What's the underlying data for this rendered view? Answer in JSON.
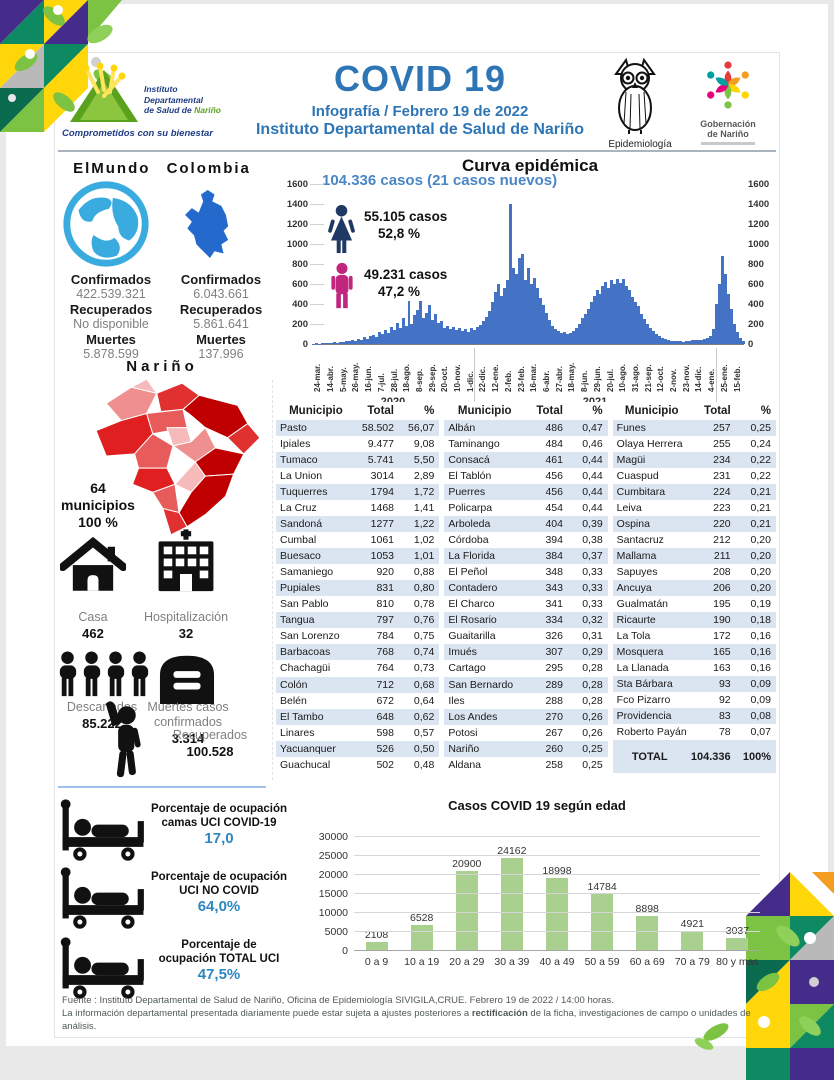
{
  "header": {
    "title": "COVID 19",
    "subtitle1": "Infografía / Febrero 19 de 2022",
    "subtitle2": "Instituto Departamental de Salud de Nariño",
    "logo": {
      "line1": "Instituto",
      "line2": "Departamental",
      "line3a": "de Salud de ",
      "line3b": "Nariño",
      "tagline": "Comprometidos con su bienestar"
    },
    "epi_label": "Epidemiología",
    "gob_line1": "Gobernación",
    "gob_line2": "de Nariño"
  },
  "world_stats": {
    "heading": "ElMundo Colombia",
    "labels": {
      "confirmed": "Confirmados",
      "recovered": "Recuperados",
      "deaths": "Muertes"
    },
    "world": {
      "confirmed": "422.539.321",
      "recovered": "No disponible",
      "deaths": "5.878.599"
    },
    "colombia": {
      "confirmed": "6.043.661",
      "recovered": "5.861.641",
      "deaths": "137.996"
    }
  },
  "narino": {
    "heading": "Nariño",
    "municipios_line1": "64",
    "municipios_line2": "municipios",
    "municipios_line3": "100 %",
    "casa_label": "Casa",
    "casa_value": "462",
    "hosp_label": "Hospitalización",
    "hosp_value": "32",
    "descartados_label": "Descartados",
    "descartados_value": "85.222",
    "muertes_label1": "Muertes casos",
    "muertes_label2": "confirmados",
    "muertes_value": "3.314",
    "recuperados_label": "Recuperados",
    "recuperados_value": "100.528"
  },
  "uci": {
    "rows": [
      {
        "l1": "Porcentaje de ocupación",
        "l2": "camas UCI COVID-19",
        "value": "17,0"
      },
      {
        "l1": "Porcentaje de ocupación",
        "l2": "UCI NO COVID",
        "value": "64,0%"
      },
      {
        "l1": "Porcentaje de",
        "l2": "ocupación TOTAL UCI",
        "value": "47,5%"
      }
    ]
  },
  "chart_data": [
    {
      "type": "bar",
      "title": "Curva epidémica",
      "annotation": "104.336 casos (21 casos nuevos)",
      "female": {
        "cases": "55.105 casos",
        "pct": "52,8 %"
      },
      "male": {
        "cases": "49.231 casos",
        "pct": "47,2 %"
      },
      "ylim": [
        0,
        1600
      ],
      "yticks": [
        0,
        200,
        400,
        600,
        800,
        1000,
        1200,
        1400,
        1600
      ],
      "x_labels": [
        "24-mar.",
        "14-abr.",
        "5-may.",
        "26-may.",
        "16-jun.",
        "7-jul.",
        "28-jul.",
        "18-ago.",
        "8-sep.",
        "29-sep.",
        "20-oct.",
        "10-nov.",
        "1-dic.",
        "22-dic.",
        "12-ene.",
        "2-feb.",
        "23-feb.",
        "16-mar.",
        "6-abr.",
        "27-abr.",
        "18-may.",
        "8-jun.",
        "29-jun.",
        "20-jul.",
        "10-ago.",
        "31-ago.",
        "21-sep.",
        "12-oct.",
        "2-nov.",
        "23-nov.",
        "14-dic.",
        "4-ene.",
        "25-ene.",
        "15-feb."
      ],
      "year_labels": [
        "2020",
        "2021"
      ],
      "bar_color": "#4472c4",
      "values": [
        4,
        6,
        5,
        9,
        8,
        12,
        10,
        16,
        14,
        22,
        18,
        30,
        26,
        40,
        34,
        52,
        44,
        66,
        55,
        80,
        95,
        70,
        120,
        100,
        145,
        110,
        170,
        140,
        210,
        160,
        260,
        180,
        430,
        200,
        290,
        340,
        430,
        260,
        310,
        390,
        240,
        300,
        210,
        230,
        160,
        185,
        150,
        170,
        140,
        165,
        130,
        150,
        125,
        160,
        140,
        175,
        190,
        230,
        270,
        330,
        420,
        520,
        600,
        480,
        560,
        640,
        1400,
        760,
        700,
        860,
        900,
        640,
        760,
        600,
        660,
        560,
        460,
        390,
        310,
        240,
        185,
        150,
        130,
        115,
        120,
        100,
        115,
        130,
        160,
        200,
        260,
        300,
        350,
        420,
        480,
        540,
        500,
        580,
        620,
        560,
        640,
        600,
        650,
        610,
        650,
        580,
        540,
        470,
        420,
        380,
        300,
        250,
        200,
        160,
        130,
        100,
        80,
        60,
        50,
        40,
        35,
        30,
        26,
        30,
        25,
        34,
        30,
        40,
        36,
        45,
        40,
        52,
        60,
        80,
        150,
        400,
        600,
        880,
        700,
        500,
        350,
        200,
        120,
        60,
        30
      ]
    },
    {
      "type": "bar",
      "title": "Casos COVID 19  según edad",
      "categories": [
        "0 a 9",
        "10 a 19",
        "20 a 29",
        "30 a 39",
        "40 a 49",
        "50 a 59",
        "60 a 69",
        "70 a 79",
        "80 y mas"
      ],
      "values": [
        2108,
        6528,
        20900,
        24162,
        18998,
        14784,
        8898,
        4921,
        3037
      ],
      "yticks": [
        0,
        5000,
        10000,
        15000,
        20000,
        25000,
        30000
      ],
      "ylim": [
        0,
        30000
      ],
      "bar_color": "#a9d08e"
    }
  ],
  "table": {
    "headers": [
      "Municipio",
      "Total",
      "%"
    ],
    "groups": [
      [
        [
          "Pasto",
          "58.502",
          "56,07"
        ],
        [
          "Ipiales",
          "9.477",
          "9,08"
        ],
        [
          "Tumaco",
          "5.741",
          "5,50"
        ],
        [
          "La Union",
          "3014",
          "2,89"
        ],
        [
          "Tuquerres",
          "1794",
          "1,72"
        ],
        [
          "La Cruz",
          "1468",
          "1,41"
        ],
        [
          "Sandoná",
          "1277",
          "1,22"
        ],
        [
          "Cumbal",
          "1061",
          "1,02"
        ],
        [
          "Buesaco",
          "1053",
          "1,01"
        ],
        [
          "Samaniego",
          "920",
          "0,88"
        ],
        [
          "Pupiales",
          "831",
          "0,80"
        ],
        [
          "San Pablo",
          "810",
          "0,78"
        ],
        [
          "Tangua",
          "797",
          "0,76"
        ],
        [
          "San Lorenzo",
          "784",
          "0,75"
        ],
        [
          "Barbacoas",
          "768",
          "0,74"
        ],
        [
          "Chachagüi",
          "764",
          "0,73"
        ],
        [
          "Colón",
          "712",
          "0,68"
        ],
        [
          "Belén",
          "672",
          "0,64"
        ],
        [
          "El Tambo",
          "648",
          "0,62"
        ],
        [
          "Linares",
          "598",
          "0,57"
        ],
        [
          "Yacuanquer",
          "526",
          "0,50"
        ],
        [
          "Guachucal",
          "502",
          "0,48"
        ]
      ],
      [
        [
          "Albán",
          "486",
          "0,47"
        ],
        [
          "Taminango",
          "484",
          "0,46"
        ],
        [
          "Consacá",
          "461",
          "0,44"
        ],
        [
          "El Tablón",
          "456",
          "0,44"
        ],
        [
          "Puerres",
          "456",
          "0,44"
        ],
        [
          "Policarpa",
          "454",
          "0,44"
        ],
        [
          "Arboleda",
          "404",
          "0,39"
        ],
        [
          "Córdoba",
          "394",
          "0,38"
        ],
        [
          "La Florida",
          "384",
          "0,37"
        ],
        [
          "El Peñol",
          "348",
          "0,33"
        ],
        [
          "Contadero",
          "343",
          "0,33"
        ],
        [
          "El Charco",
          "341",
          "0,33"
        ],
        [
          "El Rosario",
          "334",
          "0,32"
        ],
        [
          "Guaitarilla",
          "326",
          "0,31"
        ],
        [
          "Imués",
          "307",
          "0,29"
        ],
        [
          "Cartago",
          "295",
          "0,28"
        ],
        [
          "San Bernardo",
          "289",
          "0,28"
        ],
        [
          "Iles",
          "288",
          "0,28"
        ],
        [
          "Los Andes",
          "270",
          "0,26"
        ],
        [
          "Potosi",
          "267",
          "0,26"
        ],
        [
          "Nariño",
          "260",
          "0,25"
        ],
        [
          "Aldana",
          "258",
          "0,25"
        ]
      ],
      [
        [
          "Funes",
          "257",
          "0,25"
        ],
        [
          "Olaya Herrera",
          "255",
          "0,24"
        ],
        [
          "Magüi",
          "234",
          "0,22"
        ],
        [
          "Cuaspud",
          "231",
          "0,22"
        ],
        [
          "Cumbitara",
          "224",
          "0,21"
        ],
        [
          "Leiva",
          "223",
          "0,21"
        ],
        [
          "Ospina",
          "220",
          "0,21"
        ],
        [
          "Santacruz",
          "212",
          "0,20"
        ],
        [
          "Mallama",
          "211",
          "0,20"
        ],
        [
          "Sapuyes",
          "208",
          "0,20"
        ],
        [
          "Ancuya",
          "206",
          "0,20"
        ],
        [
          "Gualmatán",
          "195",
          "0,19"
        ],
        [
          "Ricaurte",
          "190",
          "0,18"
        ],
        [
          "La Tola",
          "172",
          "0,16"
        ],
        [
          "Mosquera",
          "165",
          "0,16"
        ],
        [
          "La Llanada",
          "163",
          "0,16"
        ],
        [
          "Sta Bárbara",
          "93",
          "0,09"
        ],
        [
          "Fco Pizarro",
          "92",
          "0,09"
        ],
        [
          "Providencia",
          "83",
          "0,08"
        ],
        [
          "Roberto Payán",
          "78",
          "0,07"
        ]
      ]
    ],
    "total": {
      "label": "TOTAL",
      "value": "104.336",
      "pct": "100%"
    }
  },
  "footer": {
    "line1": "Fuente : Instituto Departamental de Salud de Nariño, Oficina de Epidemiología SIVIGILA,CRUE.  Febrero 19 de 2022 / 14:00  horas.",
    "line2_pre": "La información departamental presentada diariamente puede estar sujeta a ajustes posteriores a ",
    "line2_bold": "rectificación",
    "line2_post": " de la ficha, investigaciones de campo o unidades de análisis."
  },
  "colors": {
    "accent_blue": "#2e75b6",
    "curve_bars": "#4472c4",
    "age_bars": "#a9d08e",
    "female_icon": "#1f3864",
    "male_icon": "#c0267e"
  }
}
